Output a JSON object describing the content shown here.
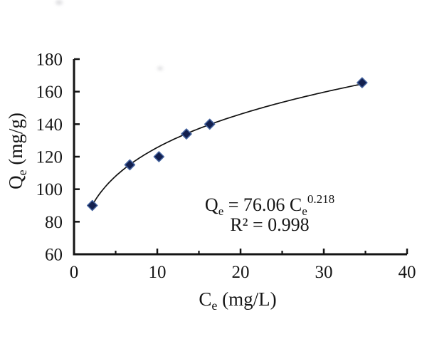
{
  "chart_data": {
    "type": "scatter",
    "title": "",
    "xlabel": "Ce (mg/L)",
    "ylabel": "Qe (mg/g)",
    "xlabel_parts": [
      {
        "t": "C"
      },
      {
        "t": "e",
        "s": "sub"
      },
      {
        "t": " (mg/L)"
      }
    ],
    "ylabel_parts": [
      {
        "t": "Q"
      },
      {
        "t": "e",
        "s": "sub"
      },
      {
        "t": " (mg/g)"
      }
    ],
    "xlim": [
      0,
      40
    ],
    "ylim": [
      60,
      180
    ],
    "x_major_ticks": [
      0,
      10,
      20,
      30,
      40
    ],
    "x_minor_ticks": [
      5,
      15,
      25,
      35
    ],
    "y_major_ticks": [
      60,
      80,
      100,
      120,
      140,
      160,
      180
    ],
    "grid": false,
    "legend_position": "none",
    "series": [
      {
        "name": "equilibrium data points",
        "type": "scatter",
        "marker": "diamond",
        "marker_color": "#13204f",
        "marker_edge_color": "#44639f",
        "points": [
          [
            2.2,
            90
          ],
          [
            6.7,
            115
          ],
          [
            10.2,
            120
          ],
          [
            13.5,
            134
          ],
          [
            16.3,
            140
          ],
          [
            34.6,
            165.5
          ]
        ]
      },
      {
        "name": "Freundlich power fit",
        "type": "line",
        "color": "#101010",
        "fit": {
          "model": "power",
          "a": 76.06,
          "b": 0.218,
          "x_start": 2.2,
          "x_end": 34.6
        }
      }
    ],
    "annotation": {
      "line1_text": "Qe = 76.06 Ce^0.218",
      "line1_parts": [
        {
          "t": "Q"
        },
        {
          "t": "e",
          "s": "sub"
        },
        {
          "t": " = 76.06 C"
        },
        {
          "t": "e",
          "s": "sub"
        },
        {
          "t": "0.218",
          "s": "sup"
        }
      ],
      "line2_text": "R² = 0.998"
    },
    "colors": {
      "axis": "#141414",
      "curve": "#101010",
      "marker_fill": "#13204f",
      "marker_edge": "#44639f",
      "text": "#151515"
    }
  }
}
